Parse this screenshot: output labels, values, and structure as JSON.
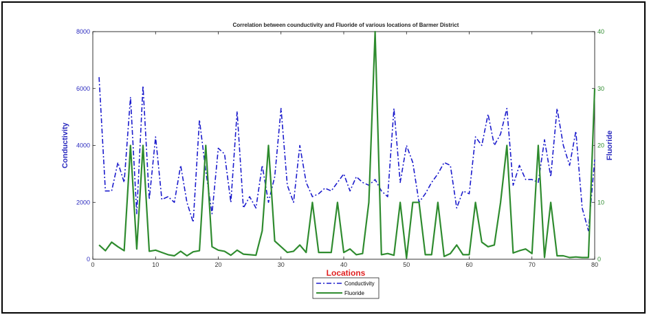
{
  "chart_data": {
    "type": "line",
    "title": "Correlation between counductivity and Fluoride of various locations of Barmer District",
    "xlabel": "Locations",
    "ylabel_left": "Conductivity",
    "ylabel_right": "Fluoride",
    "xlim": [
      0,
      80
    ],
    "ylim_left": [
      0,
      8000
    ],
    "ylim_right": [
      0,
      40
    ],
    "x_ticks": [
      0,
      10,
      20,
      30,
      40,
      50,
      60,
      70,
      80
    ],
    "y_ticks_left": [
      0,
      2000,
      4000,
      6000,
      8000
    ],
    "y_ticks_right": [
      0,
      10,
      20,
      30,
      40
    ],
    "grid": false,
    "legend_position": "bottom-center",
    "colors": {
      "conductivity": "#1a1acc",
      "fluoride": "#2e8b2e",
      "left_axis": "#2b2bbf",
      "right_axis": "#2e8b2e",
      "xlabel": "#e02020"
    },
    "x": [
      1,
      2,
      3,
      4,
      5,
      6,
      7,
      8,
      9,
      10,
      11,
      12,
      13,
      14,
      15,
      16,
      17,
      18,
      19,
      20,
      21,
      22,
      23,
      24,
      25,
      26,
      27,
      28,
      29,
      30,
      31,
      32,
      33,
      34,
      35,
      36,
      37,
      38,
      39,
      40,
      41,
      42,
      43,
      44,
      45,
      46,
      47,
      48,
      49,
      50,
      51,
      52,
      53,
      54,
      55,
      56,
      57,
      58,
      59,
      60,
      61,
      62,
      63,
      64,
      65,
      66,
      67,
      68,
      69,
      70,
      71,
      72,
      73,
      74,
      75,
      76,
      77,
      78,
      79,
      80
    ],
    "series": [
      {
        "name": "Conductivity",
        "axis": "left",
        "style": "dash-dot",
        "values": [
          6400,
          2400,
          2400,
          3400,
          2700,
          5700,
          1600,
          6100,
          2100,
          4300,
          2100,
          2200,
          2000,
          3300,
          2000,
          1300,
          4900,
          3100,
          1600,
          3900,
          3700,
          2000,
          5200,
          1800,
          2200,
          1800,
          3300,
          2000,
          2900,
          5300,
          2600,
          2000,
          4000,
          2700,
          2200,
          2300,
          2500,
          2400,
          2700,
          3000,
          2400,
          2900,
          2700,
          2600,
          2800,
          2400,
          2200,
          5300,
          2700,
          4000,
          3400,
          2000,
          2300,
          2700,
          3000,
          3400,
          3300,
          1800,
          2400,
          2300,
          4300,
          4000,
          5100,
          4000,
          4400,
          5300,
          2600,
          3300,
          2800,
          2800,
          2700,
          4200,
          2900,
          5300,
          4000,
          3300,
          4500,
          1800,
          1000,
          3500
        ]
      },
      {
        "name": "Fluoride",
        "axis": "right",
        "style": "solid",
        "values": [
          2.5,
          1.5,
          3,
          2.2,
          1.5,
          20,
          1.8,
          20,
          1.4,
          1.6,
          1.2,
          0.8,
          0.6,
          1.4,
          0.6,
          1.3,
          1.5,
          20,
          2.2,
          1.6,
          1.4,
          0.7,
          1.6,
          0.9,
          0.8,
          0.7,
          5,
          20,
          3.2,
          2.2,
          1.2,
          1.4,
          2.5,
          1.2,
          10,
          1.2,
          1.2,
          1.2,
          10,
          1.2,
          1.8,
          0.8,
          1.0,
          10,
          40,
          0.8,
          1.0,
          0.7,
          10,
          0.2,
          10,
          10,
          0.8,
          0.8,
          10,
          0.5,
          1.0,
          2.5,
          0.8,
          0.8,
          10,
          3.0,
          2.2,
          2.5,
          10,
          20,
          1.1,
          1.5,
          1.8,
          1.0,
          20,
          0.3,
          10,
          0.6,
          0.6,
          0.3,
          0.4,
          0.3,
          0.3,
          30
        ]
      }
    ]
  }
}
